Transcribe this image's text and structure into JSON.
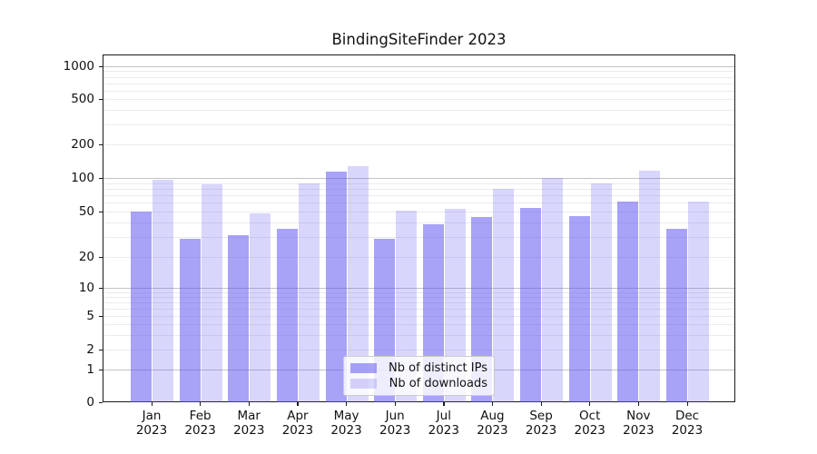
{
  "title": "BindingSiteFinder 2023",
  "chart_data": {
    "type": "bar",
    "title": "BindingSiteFinder 2023",
    "categories": [
      "Jan",
      "Feb",
      "Mar",
      "Apr",
      "May",
      "Jun",
      "Jul",
      "Aug",
      "Sep",
      "Oct",
      "Nov",
      "Dec"
    ],
    "x_tick_year": "2023",
    "series": [
      {
        "name": "Nb of distinct IPs",
        "color": "rgba(90,82,240,0.53)",
        "values": [
          50,
          29,
          31,
          35,
          114,
          29,
          39,
          45,
          54,
          46,
          62,
          35
        ]
      },
      {
        "name": "Nb of downloads",
        "color": "rgba(90,82,240,0.24)",
        "values": [
          97,
          87,
          48,
          90,
          128,
          51,
          53,
          80,
          100,
          90,
          116,
          62
        ]
      }
    ],
    "xlabel": "",
    "ylabel": "",
    "yscale": "symlog",
    "ylim": [
      0,
      1275
    ],
    "yticks": [
      0,
      1,
      2,
      5,
      10,
      20,
      50,
      100,
      200,
      500,
      1000
    ],
    "grid": "on",
    "legend_position": "lower center"
  }
}
